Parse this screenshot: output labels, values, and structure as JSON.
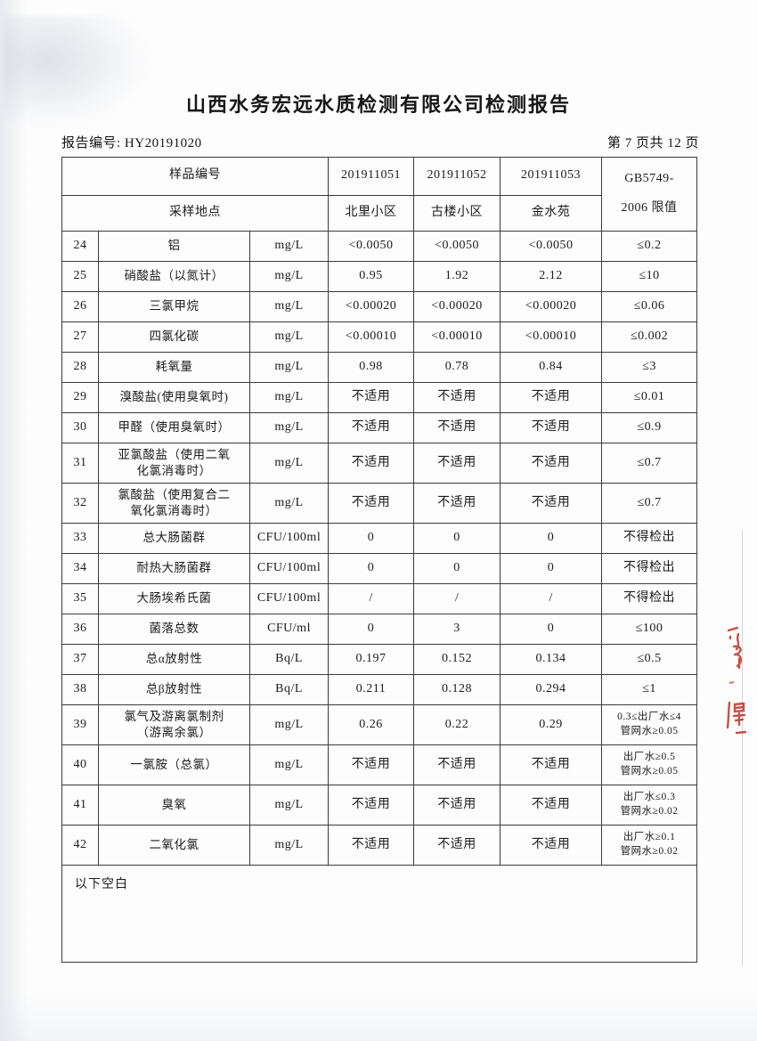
{
  "title": "山西水务宏远水质检测有限公司检测报告",
  "report_no": "报告编号: HY20191020",
  "page_label": "第 7 页共 12 页",
  "colors": {
    "stamp_red": "#c0392b"
  },
  "stamp_note": "partial-red-seal-fragments-right-edge",
  "table": {
    "header": {
      "sample_id_label": "样品编号",
      "sample_ids": [
        "201911051",
        "201911052",
        "201911053"
      ],
      "location_label": "采样地点",
      "locations": [
        "北里小区",
        "古楼小区",
        "金水苑"
      ],
      "limit_std_line1": "GB5749-",
      "limit_std_line2": "2006 限值"
    },
    "rows": [
      {
        "no": "24",
        "name": "铝",
        "unit": "mg/L",
        "v1": "<0.0050",
        "v2": "<0.0050",
        "v3": "<0.0050",
        "limit": "≤0.2"
      },
      {
        "no": "25",
        "name": "硝酸盐（以氮计）",
        "unit": "mg/L",
        "v1": "0.95",
        "v2": "1.92",
        "v3": "2.12",
        "limit": "≤10"
      },
      {
        "no": "26",
        "name": "三氯甲烷",
        "unit": "mg/L",
        "v1": "<0.00020",
        "v2": "<0.00020",
        "v3": "<0.00020",
        "limit": "≤0.06"
      },
      {
        "no": "27",
        "name": "四氯化碳",
        "unit": "mg/L",
        "v1": "<0.00010",
        "v2": "<0.00010",
        "v3": "<0.00010",
        "limit": "≤0.002"
      },
      {
        "no": "28",
        "name": "耗氧量",
        "unit": "mg/L",
        "v1": "0.98",
        "v2": "0.78",
        "v3": "0.84",
        "limit": "≤3"
      },
      {
        "no": "29",
        "name": "溴酸盐(使用臭氧时)",
        "unit": "mg/L",
        "v1": "不适用",
        "v2": "不适用",
        "v3": "不适用",
        "limit": "≤0.01"
      },
      {
        "no": "30",
        "name": "甲醛（使用臭氧时）",
        "unit": "mg/L",
        "v1": "不适用",
        "v2": "不适用",
        "v3": "不适用",
        "limit": "≤0.9"
      },
      {
        "no": "31",
        "name": "亚氯酸盐（使用二氧\n化氯消毒时）",
        "unit": "mg/L",
        "v1": "不适用",
        "v2": "不适用",
        "v3": "不适用",
        "limit": "≤0.7"
      },
      {
        "no": "32",
        "name": "氯酸盐（使用复合二\n氧化氯消毒时）",
        "unit": "mg/L",
        "v1": "不适用",
        "v2": "不适用",
        "v3": "不适用",
        "limit": "≤0.7"
      },
      {
        "no": "33",
        "name": "总大肠菌群",
        "unit": "CFU/100ml",
        "v1": "0",
        "v2": "0",
        "v3": "0",
        "limit": "不得检出"
      },
      {
        "no": "34",
        "name": "耐热大肠菌群",
        "unit": "CFU/100ml",
        "v1": "0",
        "v2": "0",
        "v3": "0",
        "limit": "不得检出"
      },
      {
        "no": "35",
        "name": "大肠埃希氏菌",
        "unit": "CFU/100ml",
        "v1": "/",
        "v2": "/",
        "v3": "/",
        "limit": "不得检出"
      },
      {
        "no": "36",
        "name": "菌落总数",
        "unit": "CFU/ml",
        "v1": "0",
        "v2": "3",
        "v3": "0",
        "limit": "≤100"
      },
      {
        "no": "37",
        "name": "总α放射性",
        "unit": "Bq/L",
        "v1": "0.197",
        "v2": "0.152",
        "v3": "0.134",
        "limit": "≤0.5"
      },
      {
        "no": "38",
        "name": "总β放射性",
        "unit": "Bq/L",
        "v1": "0.211",
        "v2": "0.128",
        "v3": "0.294",
        "limit": "≤1"
      },
      {
        "no": "39",
        "name": "氯气及游离氯制剂\n（游离余氯）",
        "unit": "mg/L",
        "v1": "0.26",
        "v2": "0.22",
        "v3": "0.29",
        "limit": "0.3≤出厂水≤4\n管网水≥0.05"
      },
      {
        "no": "40",
        "name": "一氯胺（总氯）",
        "unit": "mg/L",
        "v1": "不适用",
        "v2": "不适用",
        "v3": "不适用",
        "limit": "出厂水≥0.5\n管网水≥0.05"
      },
      {
        "no": "41",
        "name": "臭氧",
        "unit": "mg/L",
        "v1": "不适用",
        "v2": "不适用",
        "v3": "不适用",
        "limit": "出厂水≤0.3\n管网水≥0.02"
      },
      {
        "no": "42",
        "name": "二氧化氯",
        "unit": "mg/L",
        "v1": "不适用",
        "v2": "不适用",
        "v3": "不适用",
        "limit": "出厂水≥0.1\n管网水≥0.02"
      }
    ],
    "footer_note": "以下空白"
  }
}
